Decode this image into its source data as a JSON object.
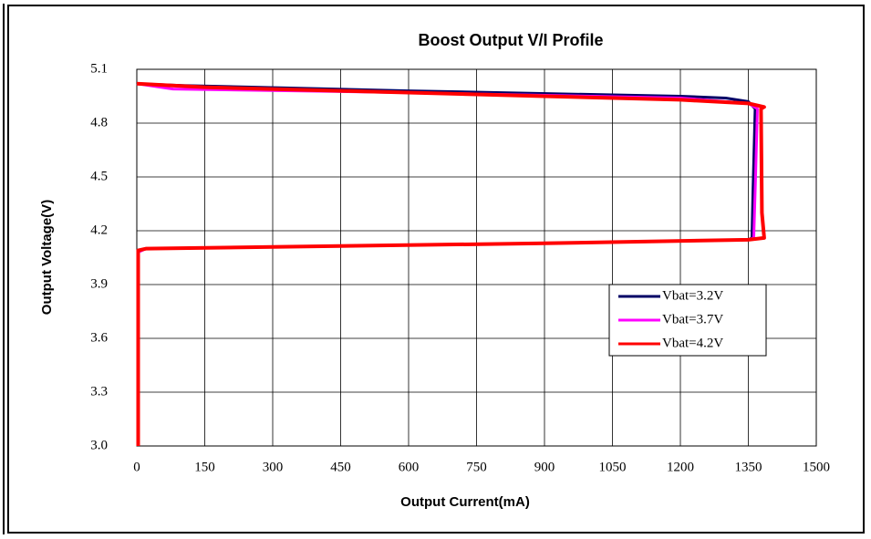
{
  "chart_data": {
    "type": "line",
    "title": "Boost Output V/I Profile",
    "x_label": "Output Current(mA)",
    "y_label": "Output Voltage(V)",
    "xlim": [
      0,
      1500
    ],
    "xticks": [
      0,
      150,
      300,
      450,
      600,
      750,
      900,
      1050,
      1200,
      1350,
      1500
    ],
    "ylim": [
      3.0,
      5.1
    ],
    "yticks": [
      {
        "value": 3.0,
        "label": "3.0"
      },
      3.3,
      3.6,
      3.9,
      4.2,
      4.5,
      4.8,
      5.1
    ],
    "grid": true,
    "legend": "right",
    "series": [
      {
        "name": "Vbat=3.2V",
        "color": "#000066",
        "x": [
          3,
          3,
          20,
          300,
          900,
          1350,
          1358,
          1360,
          1365,
          1350,
          1300,
          1200,
          600,
          100,
          0
        ],
        "values": [
          3.0,
          4.09,
          4.1,
          4.11,
          4.13,
          4.15,
          4.16,
          4.4,
          4.88,
          4.92,
          4.94,
          4.95,
          4.98,
          5.01,
          5.02
        ]
      },
      {
        "name": "Vbat=3.7V",
        "color": "#ff00ff",
        "x": [
          3,
          3,
          20,
          300,
          900,
          1350,
          1362,
          1366,
          1370,
          1350,
          1200,
          600,
          80,
          0
        ],
        "values": [
          3.0,
          4.08,
          4.1,
          4.11,
          4.13,
          4.15,
          4.16,
          4.5,
          4.88,
          4.91,
          4.94,
          4.97,
          4.99,
          5.02
        ]
      },
      {
        "name": "Vbat=4.2V",
        "color": "#ff0000",
        "x": [
          3,
          3,
          20,
          300,
          900,
          1350,
          1385,
          1380,
          1378,
          1385,
          1350,
          1200,
          900,
          450,
          150,
          0
        ],
        "values": [
          3.0,
          4.09,
          4.1,
          4.11,
          4.13,
          4.15,
          4.16,
          4.3,
          4.88,
          4.89,
          4.91,
          4.93,
          4.95,
          4.98,
          5.0,
          5.02
        ]
      }
    ]
  }
}
